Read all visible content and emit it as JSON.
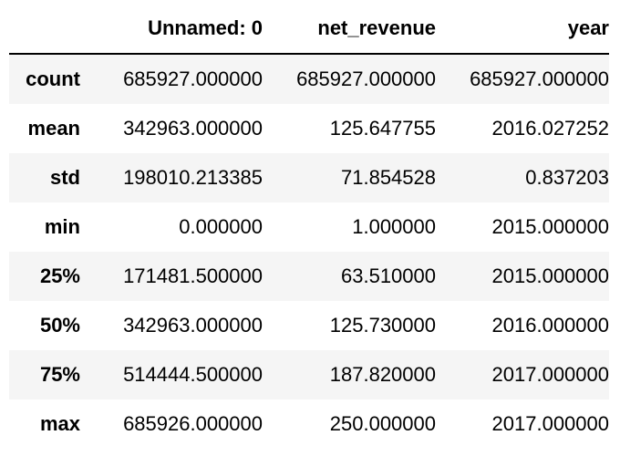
{
  "table": {
    "columns": [
      "",
      "Unnamed: 0",
      "net_revenue",
      "year"
    ],
    "rows": [
      {
        "label": "count",
        "values": [
          "685927.000000",
          "685927.000000",
          "685927.000000"
        ]
      },
      {
        "label": "mean",
        "values": [
          "342963.000000",
          "125.647755",
          "2016.027252"
        ]
      },
      {
        "label": "std",
        "values": [
          "198010.213385",
          "71.854528",
          "0.837203"
        ]
      },
      {
        "label": "min",
        "values": [
          "0.000000",
          "1.000000",
          "2015.000000"
        ]
      },
      {
        "label": "25%",
        "values": [
          "171481.500000",
          "63.510000",
          "2015.000000"
        ]
      },
      {
        "label": "50%",
        "values": [
          "342963.000000",
          "125.730000",
          "2016.000000"
        ]
      },
      {
        "label": "75%",
        "values": [
          "514444.500000",
          "187.820000",
          "2017.000000"
        ]
      },
      {
        "label": "max",
        "values": [
          "685926.000000",
          "250.000000",
          "2017.000000"
        ]
      }
    ]
  }
}
